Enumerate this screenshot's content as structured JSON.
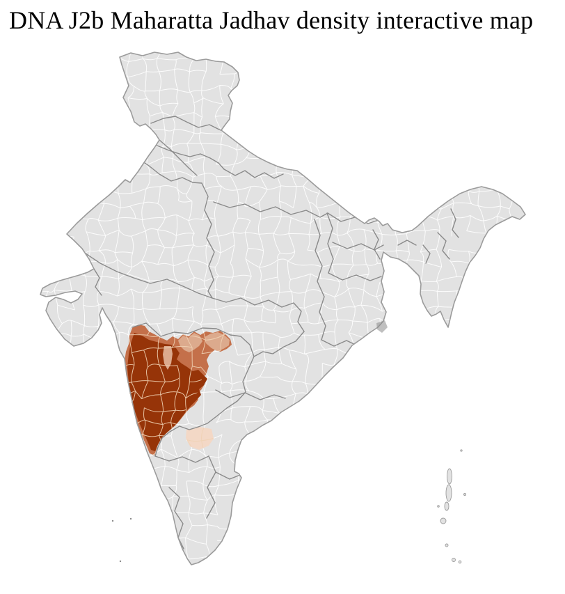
{
  "title": "DNA J2b Maharatta Jadhav density interactive map",
  "map": {
    "colors": {
      "background": "#ffffff",
      "land": "#e2e2e2",
      "district_border": "#ffffff",
      "district_border_highlight": "#f0d2b4",
      "state_border": "#8a8a8a",
      "country_outline": "#9b9b9b",
      "density_high": "#963408",
      "density_medium": "#c4704a",
      "density_low": "#dcaa8d",
      "density_trace": "#f3d8c6"
    }
  }
}
